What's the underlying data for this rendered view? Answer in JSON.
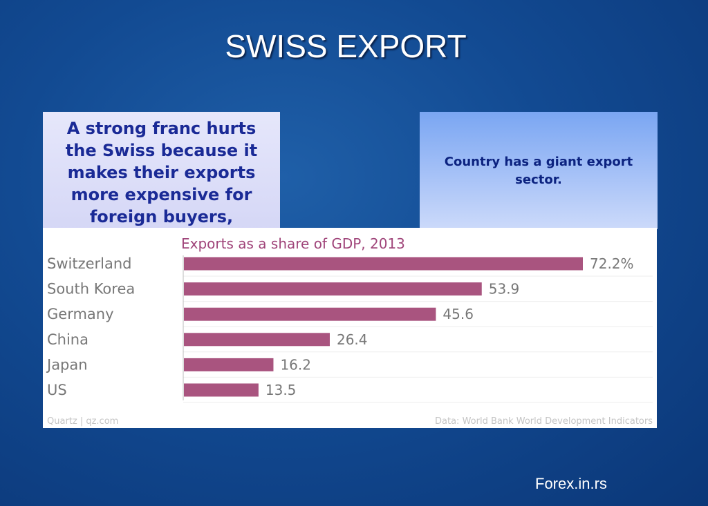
{
  "slide": {
    "title": "SWISS EXPORT",
    "left_box_text": "A strong franc hurts the Swiss because it makes their exports more expensive for foreign buyers,",
    "right_box_text": "Country has a giant export sector.",
    "footer_brand": "Forex.in.rs"
  },
  "colors": {
    "bar": "#a9547f",
    "chart_title": "#a0457a",
    "label": "#777777"
  },
  "chart_data": {
    "type": "bar",
    "orientation": "horizontal",
    "title": "Exports as a share of GDP, 2013",
    "categories": [
      "Switzerland",
      "South Korea",
      "Germany",
      "China",
      "Japan",
      "US"
    ],
    "values": [
      72.2,
      53.9,
      45.6,
      26.4,
      16.2,
      13.5
    ],
    "value_labels": [
      "72.2%",
      "53.9",
      "45.6",
      "26.4",
      "16.2",
      "13.5"
    ],
    "xlim": [
      0,
      72.2
    ],
    "grid": true,
    "source_left": "Quartz | qz.com",
    "source_right": "Data: World Bank World Development Indicators"
  }
}
